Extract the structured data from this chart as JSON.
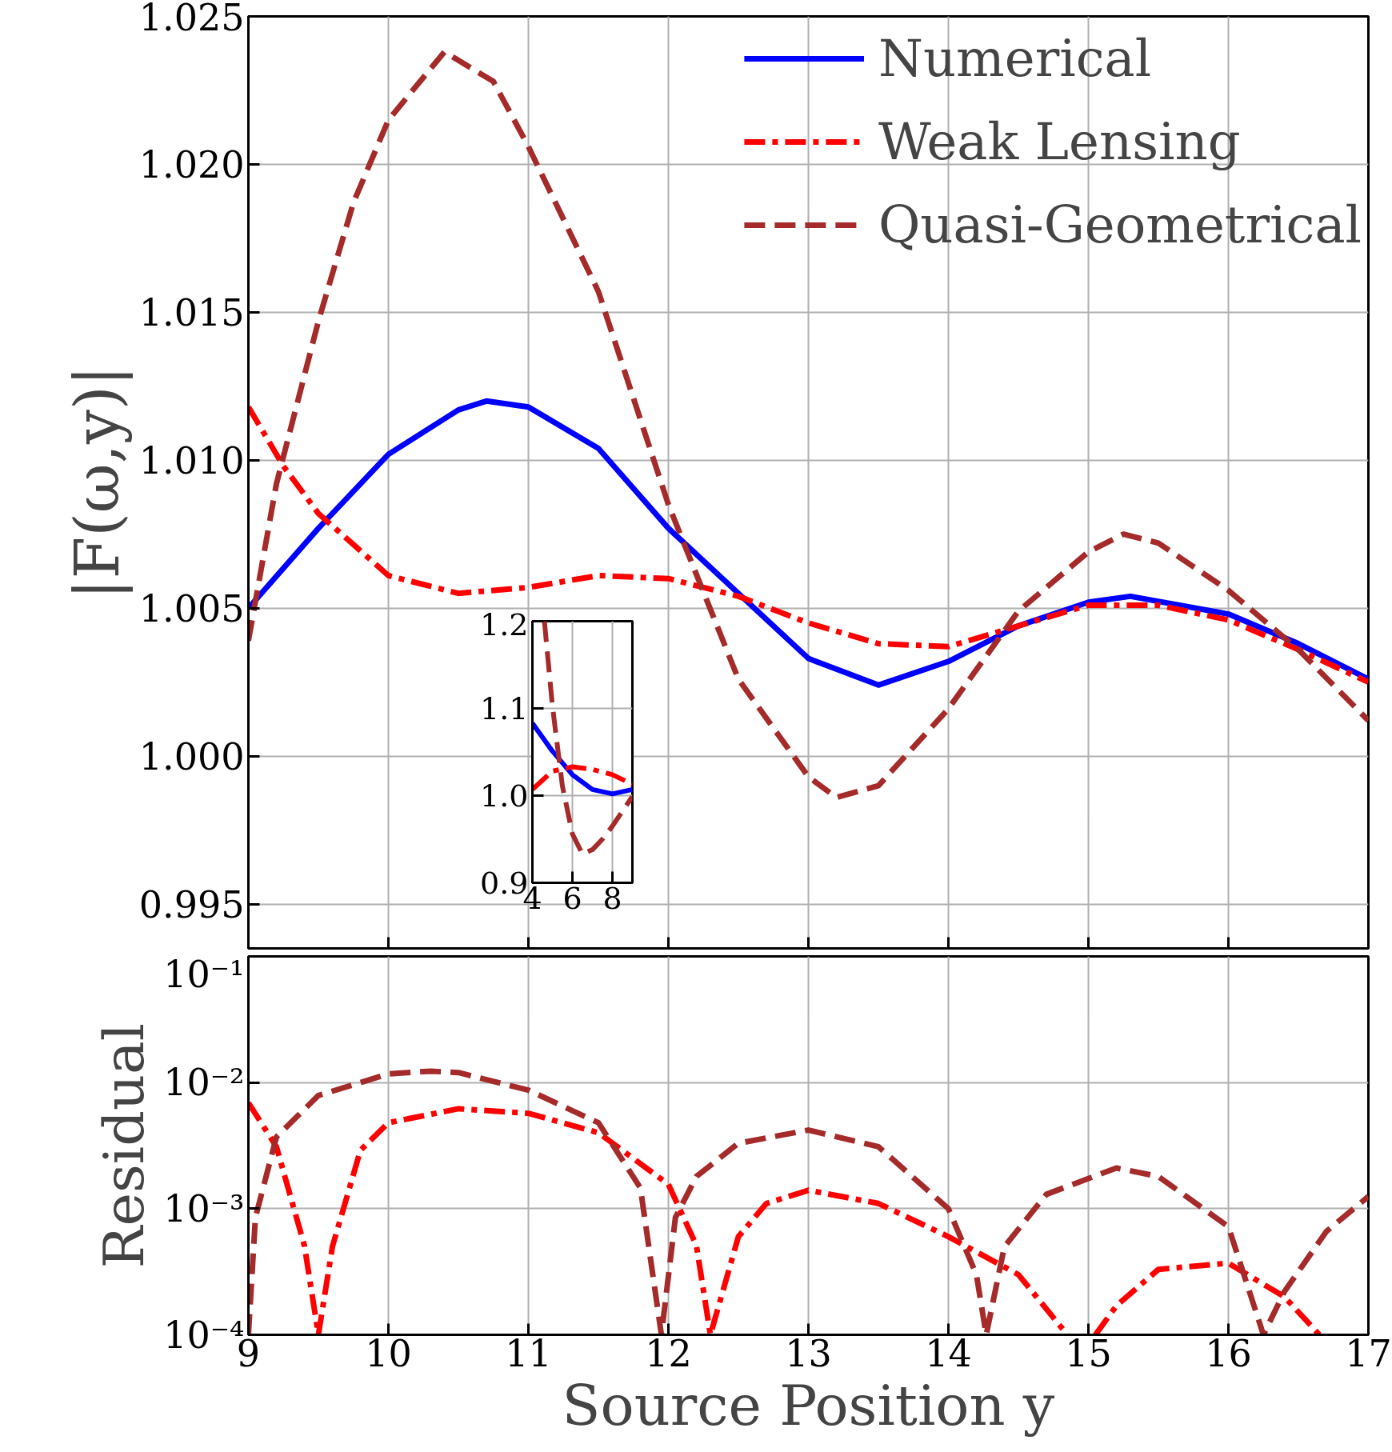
{
  "chart_data": [
    {
      "type": "line",
      "ylabel": "|F(ω,y)|",
      "xlim": [
        9,
        17
      ],
      "xticks": [
        9,
        10,
        11,
        12,
        13,
        14,
        15,
        16,
        17
      ],
      "ylim": [
        0.9935,
        1.025
      ],
      "yticks": [
        {
          "value": 0.995,
          "label": "0.995"
        },
        {
          "value": 1.0,
          "label": "1.000"
        },
        {
          "value": 1.005,
          "label": "1.005"
        },
        {
          "value": 1.01,
          "label": "1.010"
        },
        {
          "value": 1.015,
          "label": "1.015"
        },
        {
          "value": 1.02,
          "label": "1.020"
        },
        {
          "value": 1.025,
          "label": "1.025"
        }
      ],
      "tick_labels": "y",
      "grid": true,
      "legend": "top right",
      "series": [
        {
          "name": "Numerical",
          "color": "#0000ff",
          "line_style": "solid",
          "x": [
            9,
            9.5,
            10,
            10.5,
            10.7,
            11,
            11.5,
            12,
            12.5,
            13,
            13.5,
            14,
            14.5,
            15,
            15.3,
            16,
            16.5,
            17
          ],
          "values": [
            1.005,
            1.0077,
            1.0102,
            1.0117,
            1.012,
            1.0118,
            1.0104,
            1.0077,
            1.0055,
            1.0033,
            1.0024,
            1.0032,
            1.0044,
            1.0052,
            1.0054,
            1.0048,
            1.0038,
            1.0026
          ]
        },
        {
          "name": "Weak Lensing",
          "color": "#ff0000",
          "line_style": "dashdot",
          "x": [
            9,
            9.25,
            9.5,
            10,
            10.5,
            11,
            11.5,
            12,
            12.5,
            13,
            13.5,
            14,
            14.5,
            15,
            15.5,
            16,
            16.5,
            17
          ],
          "values": [
            1.0118,
            1.0098,
            1.0082,
            1.0061,
            1.0055,
            1.0057,
            1.0061,
            1.006,
            1.0054,
            1.0045,
            1.0038,
            1.0037,
            1.0044,
            1.0051,
            1.0051,
            1.0046,
            1.0036,
            1.0025
          ]
        },
        {
          "name": "Quasi-Geometrical",
          "color": "#a52a2a",
          "line_style": "dashed",
          "x": [
            9,
            9.2,
            9.5,
            9.75,
            10,
            10.4,
            10.75,
            11,
            11.5,
            12,
            12.5,
            13,
            13.2,
            13.5,
            14,
            14.5,
            15,
            15.25,
            15.5,
            16,
            16.5,
            17
          ],
          "values": [
            1.0039,
            1.0092,
            1.0147,
            1.0187,
            1.0215,
            1.0238,
            1.0228,
            1.0206,
            1.0157,
            1.0085,
            1.0026,
            0.9993,
            0.9986,
            0.999,
            1.0016,
            1.0049,
            1.0069,
            1.0075,
            1.0072,
            1.0056,
            1.0036,
            1.0012
          ]
        }
      ]
    },
    {
      "type": "line",
      "xlim": [
        4,
        9
      ],
      "xticks": [
        4,
        6,
        8
      ],
      "ylim": [
        0.9,
        1.2
      ],
      "yticks": [
        {
          "value": 0.9,
          "label": "0.9"
        },
        {
          "value": 1.0,
          "label": "1.0"
        },
        {
          "value": 1.1,
          "label": "1.1"
        },
        {
          "value": 1.2,
          "label": "1.2"
        }
      ],
      "grid": true,
      "series": [
        {
          "color": "#0000ff",
          "line_style": "solid",
          "x": [
            4,
            5,
            6,
            7,
            8,
            9
          ],
          "values": [
            1.083,
            1.051,
            1.024,
            1.007,
            1.002,
            1.007
          ]
        },
        {
          "color": "#ff0000",
          "line_style": "dashdot",
          "x": [
            4,
            5,
            6,
            7,
            8,
            9
          ],
          "values": [
            1.007,
            1.028,
            1.033,
            1.03,
            1.024,
            1.013
          ]
        },
        {
          "color": "#a52a2a",
          "line_style": "dashed",
          "x": [
            4.6,
            5,
            5.5,
            6,
            6.5,
            7,
            7.5,
            8,
            8.5,
            9
          ],
          "values": [
            1.2,
            1.103,
            1.011,
            0.956,
            0.933,
            0.938,
            0.95,
            0.965,
            0.982,
            0.999
          ]
        }
      ]
    },
    {
      "type": "line",
      "xlabel": "Source Position y",
      "ylabel": "Residual",
      "log": "y",
      "xlim": [
        9,
        17
      ],
      "xticks": [
        9,
        10,
        11,
        12,
        13,
        14,
        15,
        16,
        17
      ],
      "ylim": [
        0.0001,
        0.1
      ],
      "yticks": [
        {
          "value": 0.0001,
          "label": "10⁻⁴"
        },
        {
          "value": 0.001,
          "label": "10⁻³"
        },
        {
          "value": 0.01,
          "label": "10⁻²"
        },
        {
          "value": 0.1,
          "label": "10⁻¹"
        }
      ],
      "grid": true,
      "series": [
        {
          "color": "#ff0000",
          "line_style": "dashdot",
          "x": [
            9,
            9.2,
            9.4,
            9.5,
            9.6,
            9.8,
            10,
            10.5,
            11,
            11.5,
            12,
            12.2,
            12.3,
            12.5,
            12.7,
            13,
            13.5,
            14,
            14.5,
            14.85,
            15.0,
            15.05,
            15.2,
            15.5,
            16,
            16.4,
            16.65
          ],
          "values": [
            0.0069,
            0.0031,
            0.00051,
            0.0001,
            0.0005,
            0.0029,
            0.0048,
            0.0062,
            0.0057,
            0.004,
            0.00156,
            0.00051,
            0.0001,
            0.0006,
            0.0011,
            0.0014,
            0.0011,
            0.0006,
            0.0003,
            0.0001,
            null,
            0.0001,
            0.00017,
            0.00033,
            0.00037,
            0.0002,
            0.0001
          ]
        },
        {
          "color": "#a52a2a",
          "line_style": "dashed",
          "x": [
            9,
            9.05,
            9.2,
            9.5,
            10,
            10.3,
            10.5,
            11,
            11.5,
            11.8,
            11.95,
            12.05,
            12.2,
            12.5,
            13,
            13.5,
            14,
            14.2,
            14.27,
            14.4,
            14.7,
            15.2,
            15.5,
            16,
            16.25,
            16.4,
            16.7,
            17
          ],
          "values": [
            0.0001,
            0.00085,
            0.0037,
            0.0079,
            0.0117,
            0.0123,
            0.012,
            0.0087,
            0.0048,
            0.00146,
            0.0001,
            0.00085,
            0.0018,
            0.0033,
            0.0042,
            0.0031,
            0.001,
            0.0003,
            0.0001,
            0.0005,
            0.0013,
            0.0021,
            0.0018,
            0.00072,
            0.0001,
            0.00022,
            0.00066,
            0.00125
          ]
        }
      ]
    }
  ]
}
